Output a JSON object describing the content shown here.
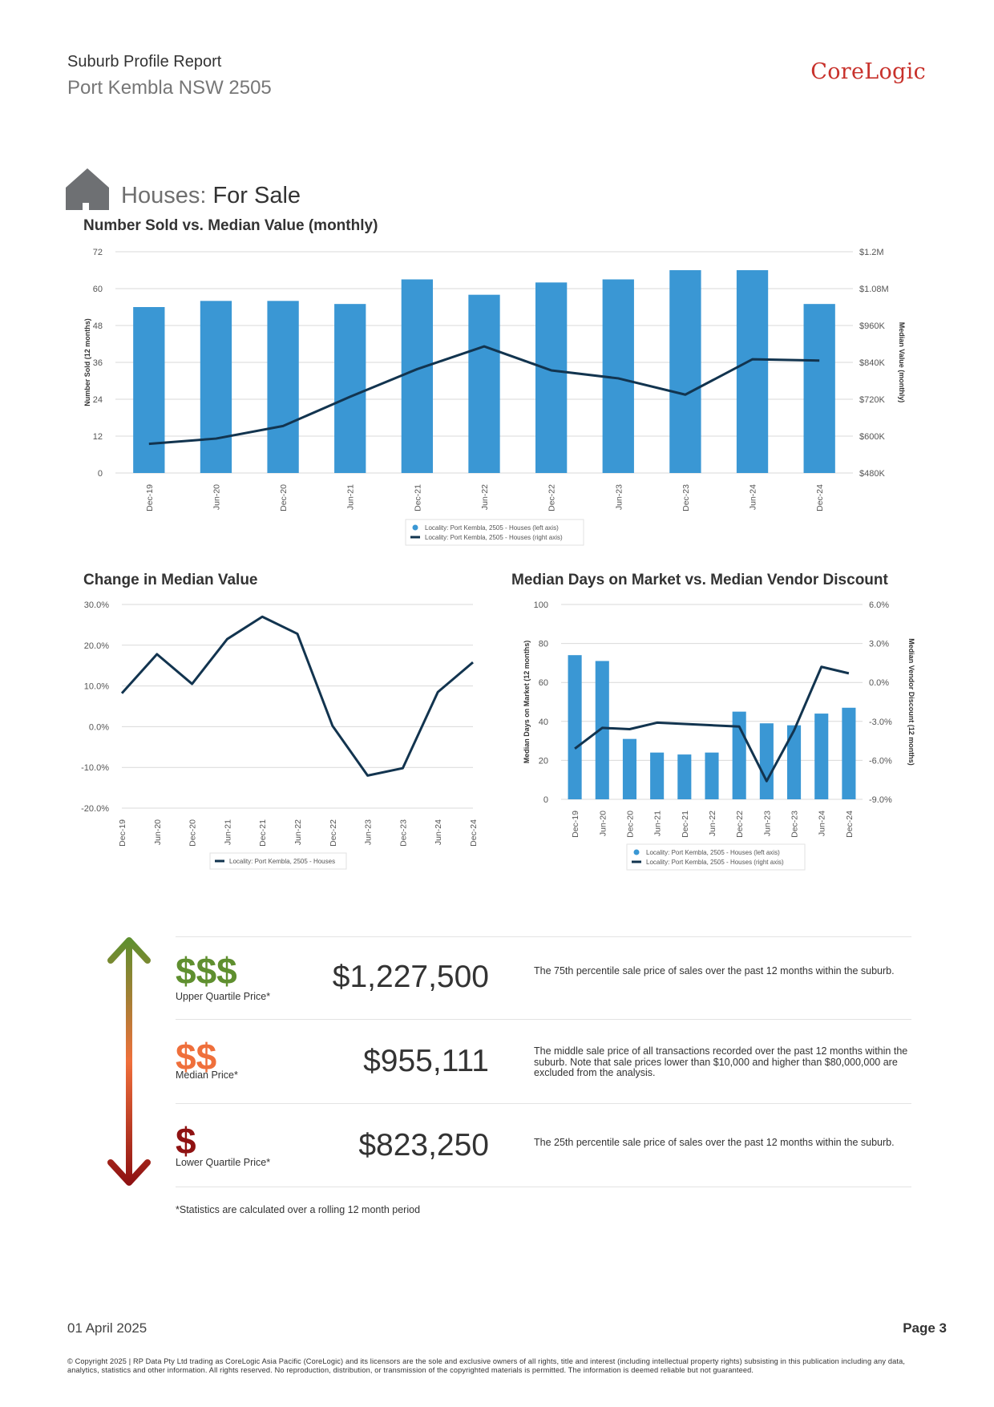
{
  "header": {
    "report_title": "Suburb Profile Report",
    "suburb": "Port Kembla NSW 2505",
    "brand": "CoreLogic"
  },
  "section": {
    "icon": "house-icon",
    "title_prefix": "Houses:",
    "title_main": "For Sale"
  },
  "colors": {
    "bar": "#3a97d4",
    "line": "#12344f",
    "brand": "#c8312b",
    "upper": "#5f8f2f",
    "median": "#ef6f3b",
    "lower": "#8f1212"
  },
  "chart_data": [
    {
      "type": "bar",
      "title": "Number Sold vs. Median Value (monthly)",
      "categories": [
        "Dec-19",
        "Jun-20",
        "Dec-20",
        "Jun-21",
        "Dec-21",
        "Jun-22",
        "Dec-22",
        "Jun-23",
        "Dec-23",
        "Jun-24",
        "Dec-24"
      ],
      "ylabel": "Number Sold (12 months)",
      "y2label": "Median Value (monthly)",
      "ylim": [
        0,
        72
      ],
      "yticks": [
        "72",
        "60",
        "48",
        "36",
        "24",
        "12",
        "0"
      ],
      "y2lim": [
        480000,
        1200000
      ],
      "y2ticks": [
        "$1.2M",
        "$1.08M",
        "$960K",
        "$840K",
        "$720K",
        "$600K",
        "$480K"
      ],
      "series": [
        {
          "name": "Locality: Port Kembla, 2505 - Houses (left axis)",
          "kind": "bar",
          "axis": "left",
          "values": [
            54,
            56,
            56,
            55,
            63,
            58,
            62,
            63,
            66,
            66,
            55
          ]
        },
        {
          "name": "Locality: Port Kembla, 2505 - Houses (right axis)",
          "kind": "line",
          "axis": "right",
          "values": [
            575000,
            592000,
            633000,
            728000,
            818000,
            892000,
            814000,
            788000,
            735000,
            850000,
            846000
          ]
        }
      ],
      "legend": "bottom-center",
      "grid": true
    },
    {
      "type": "line",
      "title": "Change in Median Value",
      "categories": [
        "Dec-19",
        "Jun-20",
        "Dec-20",
        "Jun-21",
        "Dec-21",
        "Jun-22",
        "Dec-22",
        "Jun-23",
        "Dec-23",
        "Jun-24",
        "Dec-24"
      ],
      "ylim": [
        -20,
        30
      ],
      "yticks": [
        "30.0%",
        "20.0%",
        "10.0%",
        "0.0%",
        "-10.0%",
        "-20.0%"
      ],
      "series": [
        {
          "name": "Locality: Port Kembla, 2505 - Houses",
          "values": [
            8.2,
            17.8,
            10.5,
            21.5,
            27.0,
            22.8,
            0.2,
            -12.0,
            -10.2,
            8.5,
            15.8
          ]
        }
      ],
      "legend": "bottom-center",
      "grid": true
    },
    {
      "type": "bar",
      "title": "Median Days on Market vs. Median Vendor Discount",
      "categories": [
        "Dec-19",
        "Jun-20",
        "Dec-20",
        "Jun-21",
        "Dec-21",
        "Jun-22",
        "Dec-22",
        "Jun-23",
        "Dec-23",
        "Jun-24",
        "Dec-24"
      ],
      "ylabel": "Median Days on Market (12 months)",
      "y2label": "Median Vendor Discount (12 months)",
      "ylim": [
        0,
        100
      ],
      "yticks": [
        "100",
        "80",
        "60",
        "40",
        "20",
        "0"
      ],
      "y2lim": [
        -9,
        6
      ],
      "y2ticks": [
        "6.0%",
        "3.0%",
        "0.0%",
        "-3.0%",
        "-6.0%",
        "-9.0%"
      ],
      "series": [
        {
          "name": "Locality: Port Kembla, 2505 - Houses (left axis)",
          "kind": "bar",
          "axis": "left",
          "values": [
            74,
            71,
            31,
            24,
            23,
            24,
            45,
            39,
            38,
            44,
            47
          ]
        },
        {
          "name": "Locality: Port Kembla, 2505 - Houses (right axis)",
          "kind": "line",
          "axis": "right",
          "values": [
            -5.1,
            -3.5,
            -3.6,
            -3.1,
            -3.2,
            -3.3,
            -3.4,
            -7.6,
            -3.7,
            1.2,
            0.7
          ]
        }
      ],
      "legend": "bottom-center",
      "grid": true
    }
  ],
  "prices": {
    "upper": {
      "symbol": "$$$",
      "label": "Upper Quartile Price*",
      "value": "$1,227,500",
      "desc": "The 75th percentile sale price of sales over the past 12 months within the suburb."
    },
    "median": {
      "symbol": "$$",
      "label": "Median Price*",
      "value": "$955,111",
      "desc": "The middle sale price of all transactions recorded over the past 12 months within the suburb. Note that sale prices lower than $10,000 and higher than $80,000,000 are excluded from the analysis."
    },
    "lower": {
      "symbol": "$",
      "label": "Lower Quartile Price*",
      "value": "$823,250",
      "desc": "The 25th percentile sale price of sales over the past 12 months within the suburb."
    },
    "footnote": "*Statistics are calculated over a rolling 12 month period"
  },
  "footer": {
    "date": "01 April 2025",
    "page": "Page 3",
    "copyright": "© Copyright 2025 | RP Data Pty Ltd trading as CoreLogic Asia Pacific (CoreLogic) and its licensors are the sole and exclusive owners of all rights, title and interest (including intellectual property rights) subsisting in this publication including any data, analytics, statistics and other information. All rights reserved. No reproduction, distribution, or transmission of the copyrighted materials is permitted. The information is deemed reliable but not guaranteed."
  }
}
